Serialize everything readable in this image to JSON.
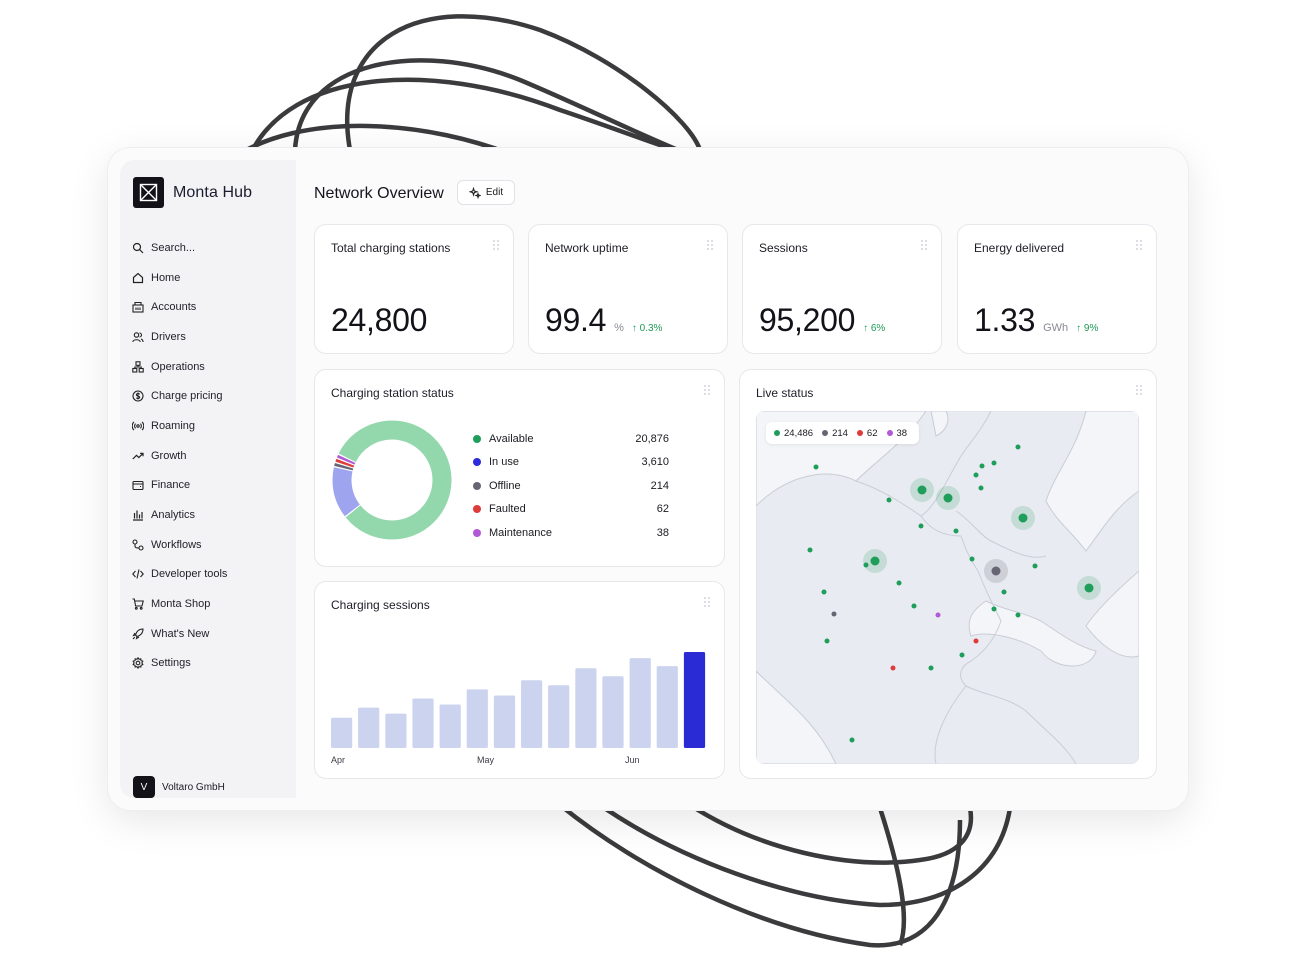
{
  "colors": {
    "available": "#1f9d5a",
    "in_use": "#2c2cdc",
    "offline": "#656574",
    "faulted": "#e03b3b",
    "maintenance": "#b25ad6",
    "bar_light": "#ccd3ee",
    "bar_highlight": "#2b2bd6",
    "donut_available": "#93d7ad",
    "donut_in_use": "#9ea4ee"
  },
  "brand": {
    "name": "Monta Hub",
    "logo_icon": "monta-logo-icon"
  },
  "sidebar": {
    "items": [
      {
        "label": "Search...",
        "icon": "search-icon"
      },
      {
        "label": "Home",
        "icon": "home-icon"
      },
      {
        "label": "Accounts",
        "icon": "accounts-icon"
      },
      {
        "label": "Drivers",
        "icon": "drivers-icon"
      },
      {
        "label": "Operations",
        "icon": "operations-icon"
      },
      {
        "label": "Charge pricing",
        "icon": "pricing-icon"
      },
      {
        "label": "Roaming",
        "icon": "roaming-icon"
      },
      {
        "label": "Growth",
        "icon": "growth-icon"
      },
      {
        "label": "Finance",
        "icon": "finance-icon"
      },
      {
        "label": "Analytics",
        "icon": "analytics-icon"
      },
      {
        "label": "Workflows",
        "icon": "workflows-icon"
      },
      {
        "label": "Developer tools",
        "icon": "code-icon"
      },
      {
        "label": "Monta Shop",
        "icon": "cart-icon"
      },
      {
        "label": "What's New",
        "icon": "rocket-icon"
      },
      {
        "label": "Settings",
        "icon": "gear-icon"
      }
    ],
    "org": {
      "avatar_letter": "V",
      "name": "Voltaro GmbH"
    }
  },
  "header": {
    "title": "Network Overview",
    "edit_label": "Edit"
  },
  "kpis": [
    {
      "title": "Total charging stations",
      "value": "24,800",
      "unit": "",
      "change": ""
    },
    {
      "title": "Network uptime",
      "value": "99.4",
      "unit": "%",
      "change": "↑ 0.3%"
    },
    {
      "title": "Sessions",
      "value": "95,200",
      "unit": "",
      "change": "↑ 6%"
    },
    {
      "title": "Energy delivered",
      "value": "1.33",
      "unit": "GWh",
      "change": "↑ 9%"
    }
  ],
  "status_card": {
    "title": "Charging station status",
    "items": [
      {
        "label": "Available",
        "value": "20,876",
        "count": 20876
      },
      {
        "label": "In use",
        "value": "3,610",
        "count": 3610
      },
      {
        "label": "Offline",
        "value": "214",
        "count": 214
      },
      {
        "label": "Faulted",
        "value": "62",
        "count": 62
      },
      {
        "label": "Maintenance",
        "value": "38",
        "count": 38
      }
    ]
  },
  "sessions_card": {
    "title": "Charging sessions"
  },
  "chart_data": {
    "type": "bar",
    "title": "Charging sessions",
    "x_tick_labels": [
      "Apr",
      "May",
      "Jun"
    ],
    "values": [
      30,
      40,
      34,
      49,
      43,
      58,
      52,
      67,
      62,
      79,
      71,
      89,
      81,
      95
    ],
    "highlight_last": true,
    "grid": false
  },
  "live_status": {
    "title": "Live status",
    "counts": [
      {
        "status": "available",
        "value": "24,486"
      },
      {
        "status": "offline",
        "value": "214"
      },
      {
        "status": "faulted",
        "value": "62"
      },
      {
        "status": "maintenance",
        "value": "38"
      }
    ]
  }
}
